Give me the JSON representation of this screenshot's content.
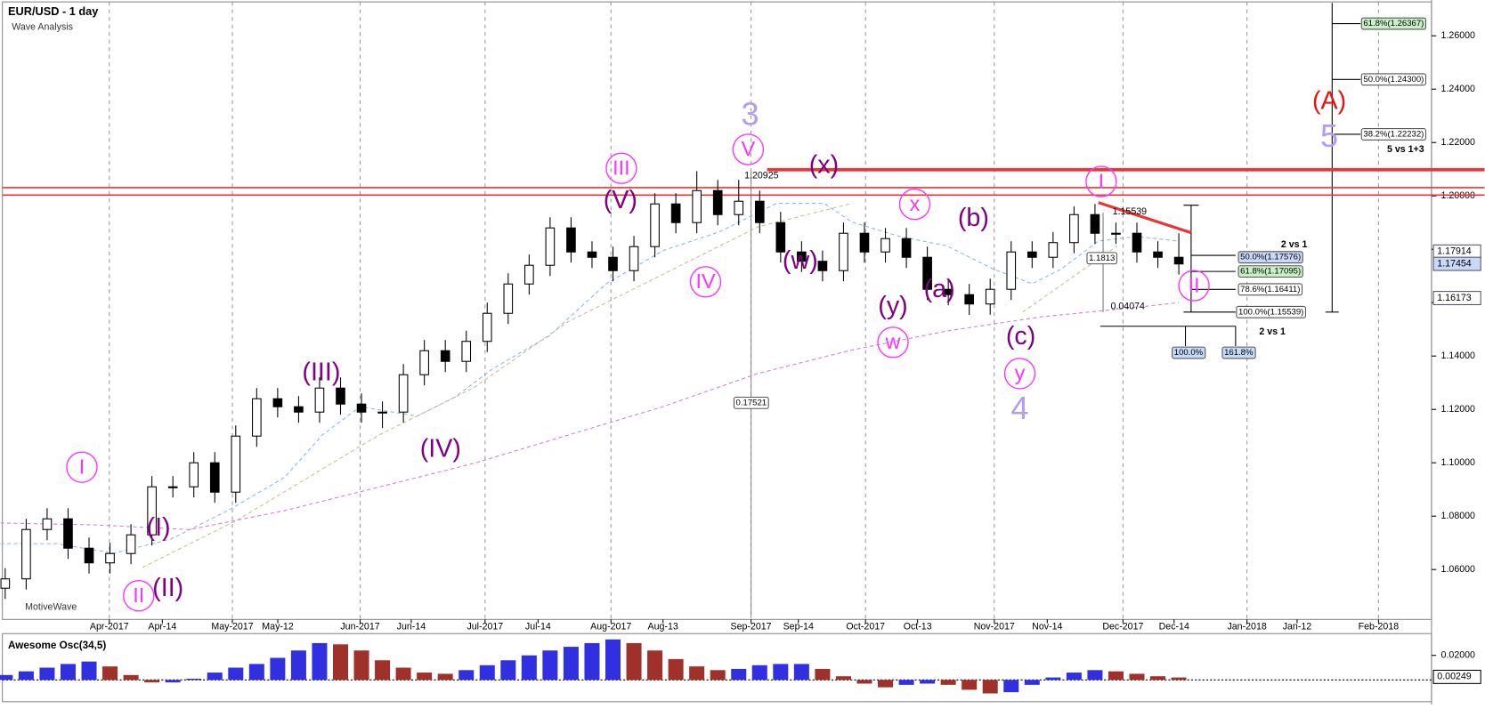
{
  "chart_data": [
    {
      "type": "candlestick",
      "title": "EUR/USD - 1 day",
      "subtitle": "Wave Analysis",
      "watermark": "MotiveWave",
      "open": [
        1.053,
        1.0565,
        1.075,
        1.079,
        1.068,
        1.0625,
        1.066,
        1.073,
        1.091,
        1.091,
        1.1,
        1.089,
        1.11,
        1.124,
        1.121,
        1.119,
        1.128,
        1.122,
        1.119,
        1.119,
        1.133,
        1.142,
        1.138,
        1.1455,
        1.156,
        1.167,
        1.174,
        1.188,
        1.179,
        1.177,
        1.172,
        1.181,
        1.197,
        1.19,
        1.202,
        1.193,
        1.198,
        1.19,
        1.179,
        1.1755,
        1.172,
        1.186,
        1.179,
        1.184,
        1.177,
        1.165,
        1.163,
        1.1595,
        1.165,
        1.179,
        1.177,
        1.1825,
        1.193,
        1.186,
        1.186,
        1.179,
        1.177
      ],
      "high": [
        1.0605,
        1.079,
        1.083,
        1.083,
        1.072,
        1.07,
        1.077,
        1.095,
        1.095,
        1.104,
        1.104,
        1.114,
        1.128,
        1.128,
        1.125,
        1.132,
        1.132,
        1.126,
        1.123,
        1.137,
        1.146,
        1.146,
        1.1495,
        1.16,
        1.171,
        1.178,
        1.192,
        1.192,
        1.183,
        1.181,
        1.185,
        1.201,
        1.201,
        1.2093,
        1.206,
        1.206,
        1.202,
        1.194,
        1.183,
        1.1795,
        1.19,
        1.19,
        1.188,
        1.188,
        1.181,
        1.169,
        1.167,
        1.169,
        1.183,
        1.183,
        1.1865,
        1.1961,
        1.197,
        1.19,
        1.19,
        1.183,
        1.186
      ],
      "low": [
        1.049,
        1.0525,
        1.071,
        1.064,
        1.0585,
        1.0585,
        1.062,
        1.069,
        1.087,
        1.087,
        1.085,
        1.085,
        1.106,
        1.117,
        1.115,
        1.115,
        1.118,
        1.115,
        1.113,
        1.115,
        1.129,
        1.134,
        1.134,
        1.1415,
        1.152,
        1.163,
        1.17,
        1.175,
        1.173,
        1.168,
        1.168,
        1.177,
        1.186,
        1.186,
        1.189,
        1.189,
        1.186,
        1.175,
        1.1715,
        1.168,
        1.168,
        1.175,
        1.175,
        1.173,
        1.161,
        1.159,
        1.1554,
        1.1555,
        1.161,
        1.173,
        1.173,
        1.1785,
        1.182,
        1.182,
        1.175,
        1.173,
        1.1705
      ],
      "close": [
        1.0565,
        1.075,
        1.079,
        1.068,
        1.0625,
        1.066,
        1.073,
        1.091,
        1.091,
        1.1,
        1.089,
        1.11,
        1.124,
        1.121,
        1.119,
        1.128,
        1.122,
        1.119,
        1.119,
        1.133,
        1.142,
        1.138,
        1.1455,
        1.156,
        1.167,
        1.174,
        1.188,
        1.179,
        1.177,
        1.172,
        1.181,
        1.197,
        1.19,
        1.202,
        1.193,
        1.198,
        1.19,
        1.179,
        1.1755,
        1.172,
        1.186,
        1.179,
        1.184,
        1.177,
        1.165,
        1.163,
        1.1595,
        1.165,
        1.179,
        1.177,
        1.1825,
        1.193,
        1.186,
        1.186,
        1.179,
        1.177,
        1.1745
      ],
      "up_color": "#ffffff",
      "down_color": "#000000",
      "ylim": [
        1.0413,
        1.2727
      ],
      "yticks": [
        {
          "value": 1.06,
          "label": "1.06000"
        },
        {
          "value": 1.08,
          "label": "1.08000"
        },
        {
          "value": 1.1,
          "label": "1.10000"
        },
        {
          "value": 1.12,
          "label": "1.12000"
        },
        {
          "value": 1.14,
          "label": "1.14000"
        },
        {
          "value": 1.16,
          "label": "1.16000"
        },
        {
          "value": 1.18,
          "label": "1.18000"
        },
        {
          "value": 1.2,
          "label": "1.20000"
        },
        {
          "value": 1.22,
          "label": "1.22000"
        },
        {
          "value": 1.24,
          "label": "1.24000"
        },
        {
          "value": 1.26,
          "label": "1.26000"
        }
      ],
      "x_labels": [
        "Apr-2017",
        "Apr-14",
        "May-2017",
        "May-12",
        "Jun-2017",
        "Jun-14",
        "Jul-2017",
        "Jul-14",
        "Aug-2017",
        "Aug-13",
        "Sep-2017",
        "Sep-14",
        "Oct-2017",
        "Oct-13",
        "Nov-2017",
        "Nov-14",
        "Dec-2017",
        "Dec-14",
        "Jan-2018",
        "Jan-12",
        "Feb-2018"
      ],
      "grid": true,
      "resistance_lines": [
        1.2031,
        1.2003
      ],
      "resistance_color": "#ee3333",
      "thick_line": 1.2098,
      "trendline": [
        1.1975,
        1.1862
      ],
      "price_markers": [
        1.17914,
        1.17454,
        1.16173
      ],
      "wave_labels": [
        {
          "text": "I",
          "color": "#ff33ff",
          "circled": true
        },
        {
          "text": "II",
          "color": "#ff33ff",
          "circled": true
        },
        {
          "text": "(I)",
          "color": "#800080"
        },
        {
          "text": "(II)",
          "color": "#800080"
        },
        {
          "text": "(III)",
          "color": "#800080"
        },
        {
          "text": "(IV)",
          "color": "#800080"
        },
        {
          "text": "III",
          "color": "#ff33ff",
          "circled": true
        },
        {
          "text": "(V)",
          "color": "#800080"
        },
        {
          "text": "IV",
          "color": "#ff33ff",
          "circled": true
        },
        {
          "text": "3",
          "color": "#b39dee"
        },
        {
          "text": "V",
          "color": "#ff33ff",
          "circled": true
        },
        {
          "text": "(x)",
          "color": "#800080"
        },
        {
          "text": "(w)",
          "color": "#800080"
        },
        {
          "text": "x",
          "color": "#ff33ff",
          "circled": true
        },
        {
          "text": "(b)",
          "color": "#800080"
        },
        {
          "text": "(a)",
          "color": "#800080"
        },
        {
          "text": "(y)",
          "color": "#800080"
        },
        {
          "text": "w",
          "color": "#ff33ff",
          "circled": true
        },
        {
          "text": "(c)",
          "color": "#800080"
        },
        {
          "text": "y",
          "color": "#ff33ff",
          "circled": true
        },
        {
          "text": "4",
          "color": "#b39dee"
        },
        {
          "text": "I",
          "color": "#ff33ff",
          "circled": true
        },
        {
          "text": "II",
          "color": "#ff33ff",
          "circled": true
        },
        {
          "text": "(A)",
          "color": "#ee1111"
        },
        {
          "text": "5",
          "color": "#b39dee"
        }
      ],
      "fib_labels": [
        "61.8%(1.26367)",
        "50.0%(1.24300)",
        "38.2%(1.22232)",
        "5 vs 1+3",
        "2 vs 1",
        "50.0%(1.17576)",
        "61.8%(1.17095)",
        "78.6%(1.16411)",
        "100.0%(1.15539)",
        "2 vs 1",
        "100.0%",
        "161.8%",
        "1.20925",
        "0.17521",
        "1.1813",
        "0.04074",
        "1.15539"
      ]
    },
    {
      "type": "bar",
      "title": "Awesome Osc(34,5)",
      "values": [
        0.004,
        0.007,
        0.01,
        0.013,
        0.015,
        0.011,
        0.004,
        -0.002,
        -0.002,
        0.001,
        0.006,
        0.01,
        0.013,
        0.018,
        0.024,
        0.03,
        0.029,
        0.024,
        0.016,
        0.01,
        0.006,
        0.005,
        0.008,
        0.012,
        0.016,
        0.02,
        0.024,
        0.027,
        0.03,
        0.033,
        0.03,
        0.024,
        0.017,
        0.011,
        0.008,
        0.009,
        0.012,
        0.013,
        0.013,
        0.009,
        0.003,
        -0.003,
        -0.006,
        -0.004,
        -0.003,
        -0.004,
        -0.008,
        -0.011,
        -0.01,
        -0.004,
        0.002,
        0.006,
        0.008,
        0.007,
        0.005,
        0.003,
        0.002
      ],
      "up_color": "#3030e0",
      "down_color": "#a0302a",
      "ylim": [
        -0.0162,
        0.0362
      ],
      "yticks": [
        {
          "value": 0.02,
          "label": "0.02000"
        }
      ],
      "current": 0.00249
    }
  ]
}
